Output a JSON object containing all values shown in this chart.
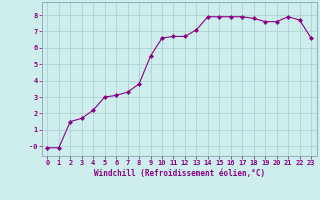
{
  "x": [
    0,
    1,
    2,
    3,
    4,
    5,
    6,
    7,
    8,
    9,
    10,
    11,
    12,
    13,
    14,
    15,
    16,
    17,
    18,
    19,
    20,
    21,
    22,
    23
  ],
  "y": [
    -0.1,
    -0.1,
    1.5,
    1.7,
    2.2,
    3.0,
    3.1,
    3.3,
    3.8,
    5.5,
    6.6,
    6.7,
    6.7,
    7.1,
    7.9,
    7.9,
    7.9,
    7.9,
    7.8,
    7.6,
    7.6,
    7.9,
    7.7,
    6.6
  ],
  "line_color": "#880088",
  "marker": "D",
  "marker_size": 2,
  "bg_color": "#ceeeed",
  "grid_color": "#aacccc",
  "xlabel": "Windchill (Refroidissement éolien,°C)",
  "xlabel_color": "#880088",
  "tick_color": "#880088",
  "xlim": [
    -0.5,
    23.5
  ],
  "ylim": [
    -0.6,
    8.8
  ],
  "yticks": [
    0,
    1,
    2,
    3,
    4,
    5,
    6,
    7,
    8
  ],
  "ytick_labels": [
    "-0",
    "1",
    "2",
    "3",
    "4",
    "5",
    "6",
    "7",
    "8"
  ],
  "xticks": [
    0,
    1,
    2,
    3,
    4,
    5,
    6,
    7,
    8,
    9,
    10,
    11,
    12,
    13,
    14,
    15,
    16,
    17,
    18,
    19,
    20,
    21,
    22,
    23
  ]
}
